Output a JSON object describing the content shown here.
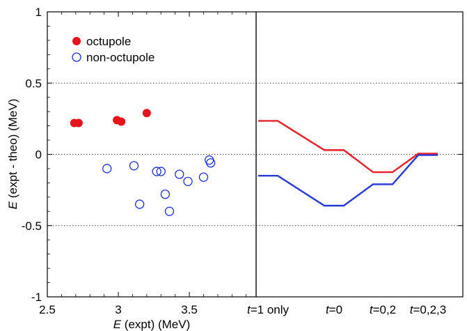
{
  "chart_data": [
    {
      "type": "scatter",
      "xlabel_italic": "E",
      "xlabel_rest": " (expt) (MeV)",
      "ylabel_italic": "E",
      "ylabel_rest": " (expt - theo) (MeV)",
      "xlim": [
        2.5,
        3.97
      ],
      "ylim": [
        -1,
        1
      ],
      "xticks": [
        "2.5",
        "3",
        "3.5"
      ],
      "xtick_values": [
        2.5,
        3.0,
        3.5
      ],
      "yticks": [
        "1",
        "0.5",
        "0",
        "-0.5",
        "-1"
      ],
      "ytick_values": [
        1,
        0.5,
        0,
        -0.5,
        -1
      ],
      "gridlines_y": [
        0.5,
        0,
        -0.5
      ],
      "legend_position": "top-left",
      "series": [
        {
          "name": "octupole",
          "color": "#e8141c",
          "marker": "filled-circle",
          "points": [
            [
              2.69,
              0.22
            ],
            [
              2.72,
              0.22
            ],
            [
              2.99,
              0.24
            ],
            [
              3.02,
              0.23
            ],
            [
              3.2,
              0.29
            ]
          ]
        },
        {
          "name": "non-octupole",
          "color": "#1a2fd6",
          "marker": "open-circle",
          "points": [
            [
              2.92,
              -0.1
            ],
            [
              3.11,
              -0.08
            ],
            [
              3.15,
              -0.35
            ],
            [
              3.27,
              -0.12
            ],
            [
              3.3,
              -0.12
            ],
            [
              3.33,
              -0.28
            ],
            [
              3.36,
              -0.4
            ],
            [
              3.43,
              -0.14
            ],
            [
              3.49,
              -0.19
            ],
            [
              3.6,
              -0.16
            ],
            [
              3.64,
              -0.04
            ],
            [
              3.65,
              -0.06
            ]
          ]
        }
      ]
    },
    {
      "type": "line",
      "categories_italic": [
        "t",
        "t",
        "t",
        "t"
      ],
      "categories_rest": [
        "=1 only",
        "=0",
        "=0,2",
        "=0,2,3"
      ],
      "ylim": [
        -1,
        1
      ],
      "gridlines_y": [
        0.5,
        0,
        -0.5
      ],
      "series": [
        {
          "color": "#e8141c",
          "values": [
            0.235,
            0.03,
            -0.125,
            0.005
          ]
        },
        {
          "color": "#1a2fd6",
          "values": [
            -0.15,
            -0.36,
            -0.21,
            -0.005
          ]
        }
      ]
    }
  ]
}
